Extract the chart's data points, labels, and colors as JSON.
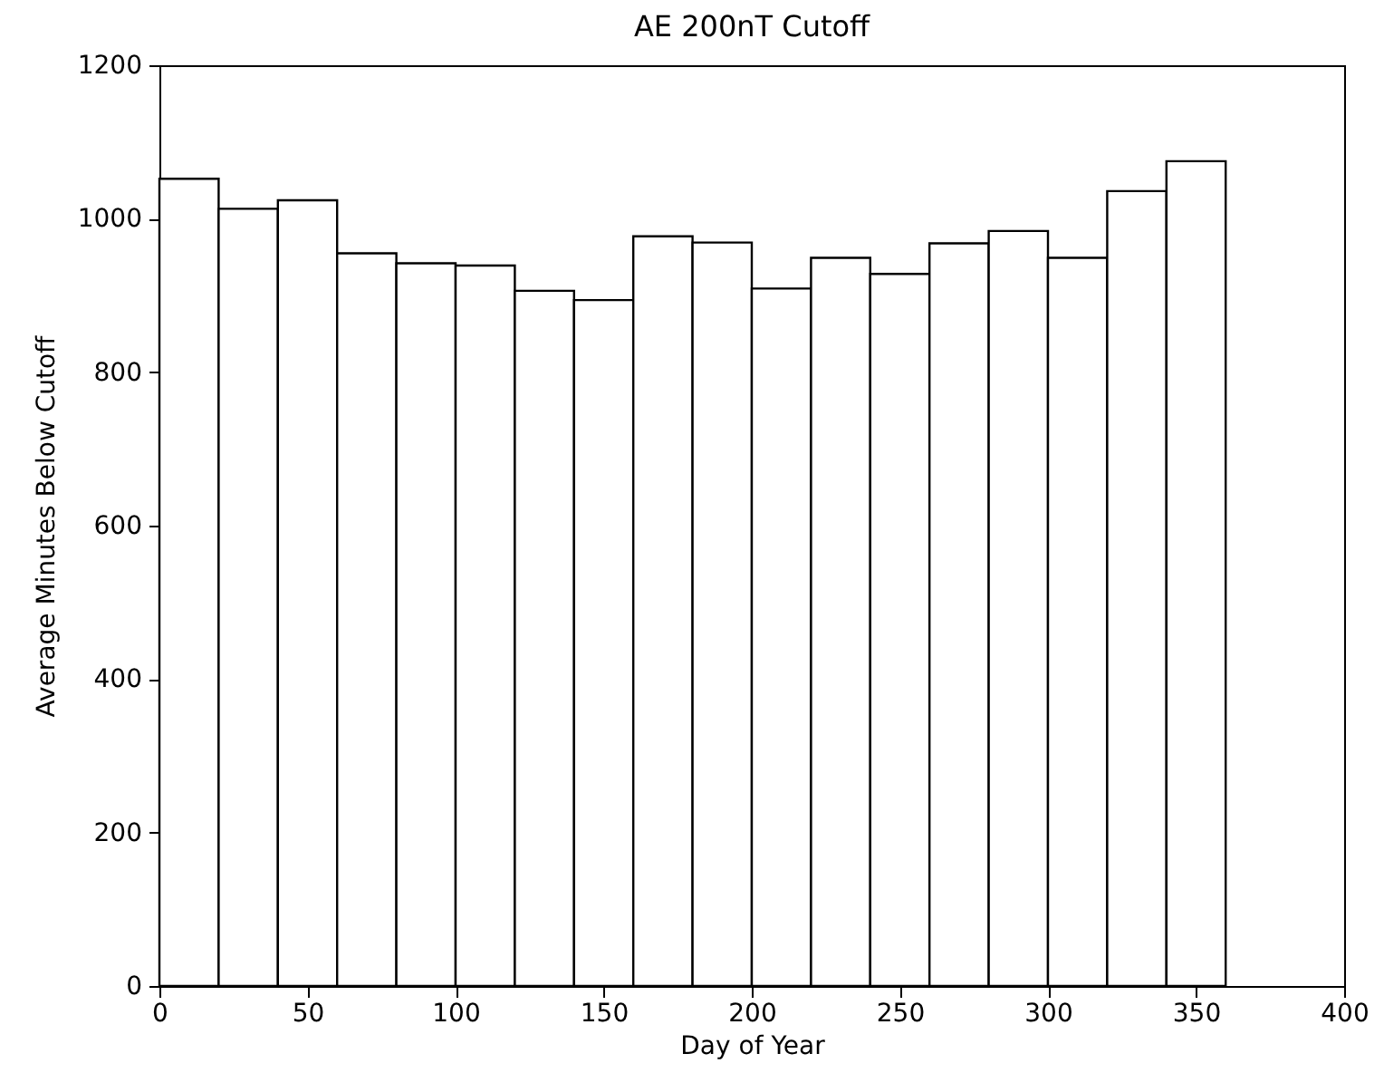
{
  "chart_data": {
    "type": "histogram",
    "title": "AE 200nT Cutoff",
    "xlabel": "Day of Year",
    "ylabel": "Average Minutes Below Cutoff",
    "bins": [
      0,
      20,
      40,
      60,
      80,
      100,
      120,
      140,
      160,
      180,
      200,
      220,
      240,
      260,
      280,
      300,
      320,
      340,
      360
    ],
    "values": [
      1052,
      1013,
      1024,
      955,
      942,
      939,
      906,
      894,
      977,
      969,
      909,
      949,
      928,
      968,
      984,
      949,
      1036,
      1075
    ],
    "color": "#ffffff",
    "xlim": [
      0,
      400
    ],
    "xticks": [
      0,
      50,
      100,
      150,
      200,
      250,
      300,
      350,
      400
    ],
    "ylim": [
      0,
      1200
    ],
    "yticks": [
      0,
      200,
      400,
      600,
      800,
      1000,
      1200
    ],
    "grid": false
  }
}
